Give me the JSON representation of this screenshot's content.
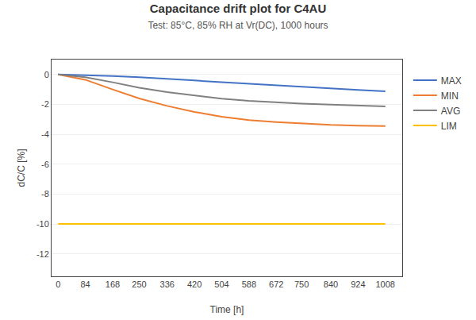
{
  "chart_data": {
    "type": "line",
    "title": "Capacitance drift plot for C4AU",
    "subtitle": "Test: 85°C, 85% RH at Vr(DC), 1000 hours",
    "xlabel": "Time [h]",
    "ylabel": "dC/C [%]",
    "series": [
      {
        "name": "MAX",
        "color": "#4472C4",
        "x": [
          0,
          84,
          168,
          250,
          336,
          420,
          504,
          588,
          672,
          750,
          840,
          924,
          1008
        ],
        "values": [
          0,
          -0.04,
          -0.1,
          -0.18,
          -0.28,
          -0.4,
          -0.52,
          -0.63,
          -0.73,
          -0.83,
          -0.93,
          -1.03,
          -1.12
        ]
      },
      {
        "name": "MIN",
        "color": "#ED7D31",
        "x": [
          0,
          84,
          168,
          250,
          336,
          420,
          504,
          588,
          672,
          750,
          840,
          924,
          1008
        ],
        "values": [
          0,
          -0.35,
          -1.0,
          -1.6,
          -2.1,
          -2.5,
          -2.82,
          -3.05,
          -3.18,
          -3.28,
          -3.37,
          -3.42,
          -3.45
        ]
      },
      {
        "name": "AVG",
        "color": "#808080",
        "x": [
          0,
          84,
          168,
          250,
          336,
          420,
          504,
          588,
          672,
          750,
          840,
          924,
          1008
        ],
        "values": [
          0,
          -0.18,
          -0.52,
          -0.88,
          -1.18,
          -1.42,
          -1.62,
          -1.76,
          -1.87,
          -1.95,
          -2.02,
          -2.08,
          -2.14
        ]
      },
      {
        "name": "LIM",
        "color": "#FFC000",
        "x": [
          0,
          1008
        ],
        "values": [
          -10,
          -10
        ]
      }
    ],
    "xlim": [
      -20,
      1060
    ],
    "xticks": [
      0,
      84,
      168,
      250,
      336,
      420,
      504,
      588,
      672,
      750,
      840,
      924,
      1008
    ],
    "ylim": [
      -13.5,
      1.0
    ],
    "yticks": [
      0,
      -2,
      -4,
      -6,
      -8,
      -10,
      -12
    ],
    "grid": "y",
    "legend": "right"
  }
}
